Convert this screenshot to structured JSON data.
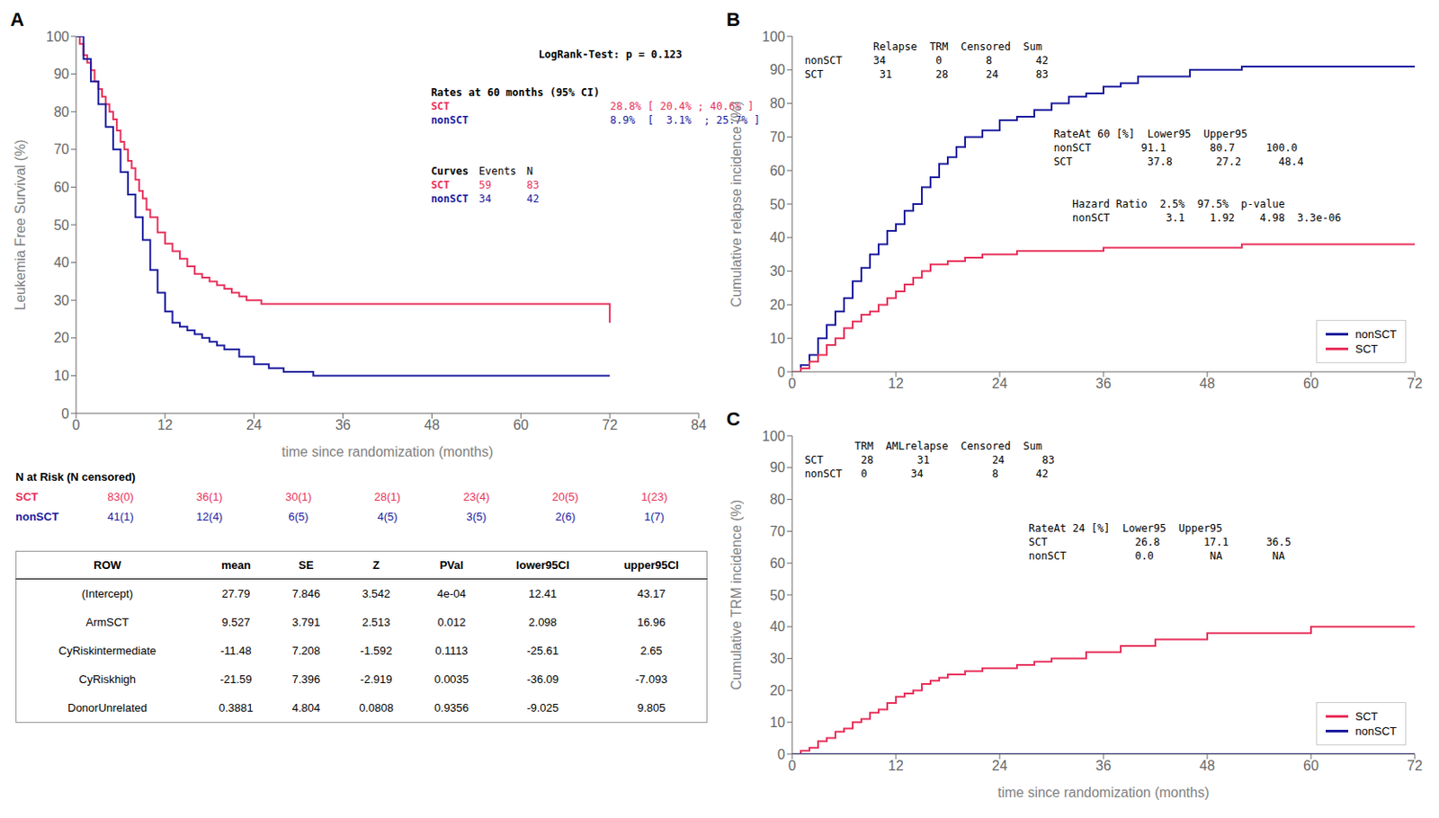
{
  "chart_data": [
    {
      "type": "line",
      "line_style": "step",
      "title": "A",
      "ylabel": "Leukemia Free Survival (%)",
      "xlabel": "time since randomization (months)",
      "xlim": [
        0,
        84
      ],
      "ylim": [
        0,
        100
      ],
      "xticks": [
        0,
        12,
        24,
        36,
        48,
        60,
        72,
        84
      ],
      "yticks": [
        0,
        10,
        20,
        30,
        40,
        50,
        60,
        70,
        80,
        90,
        100
      ],
      "series": [
        {
          "name": "SCT",
          "color": "#e8305a",
          "x": [
            0,
            0.5,
            1,
            1.5,
            2,
            2.5,
            3,
            3.5,
            4,
            4.5,
            5,
            5.5,
            6,
            6.5,
            7,
            7.5,
            8,
            8.5,
            9,
            9.5,
            10,
            11,
            12,
            13,
            14,
            15,
            16,
            17,
            18,
            19,
            20,
            21,
            22,
            23,
            24,
            25,
            26,
            27,
            28,
            30,
            32,
            34,
            36,
            38,
            40,
            42,
            44,
            46,
            48,
            52,
            56,
            60,
            64,
            72
          ],
          "values": [
            100,
            98,
            95,
            93,
            91,
            88,
            86,
            84,
            82,
            80,
            78,
            75,
            72,
            70,
            67,
            65,
            62,
            59,
            57,
            54,
            52,
            48,
            45,
            43,
            41,
            39,
            37,
            36,
            35,
            34,
            33,
            32,
            31,
            30,
            30,
            29,
            29,
            29,
            29,
            29,
            29,
            29,
            29,
            29,
            29,
            29,
            29,
            29,
            29,
            29,
            29,
            29,
            29,
            24
          ]
        },
        {
          "name": "nonSCT",
          "color": "#1a1a9e",
          "x": [
            0,
            1,
            2,
            3,
            4,
            5,
            6,
            7,
            8,
            9,
            10,
            11,
            12,
            13,
            14,
            15,
            16,
            17,
            18,
            19,
            20,
            22,
            24,
            26,
            28,
            32,
            36,
            40,
            60,
            72
          ],
          "values": [
            100,
            94,
            88,
            82,
            76,
            70,
            64,
            58,
            52,
            46,
            38,
            32,
            27,
            24,
            23,
            22,
            21,
            20,
            19,
            18,
            17,
            15,
            13,
            12,
            11,
            10,
            10,
            10,
            10,
            10
          ]
        }
      ],
      "annotations": [
        {
          "lines": [
            [
              "LogRank-Test: p = 0.123"
            ]
          ],
          "colors": [
            "#000000"
          ]
        },
        {
          "lines": [
            [
              "Rates at 60 months (95% CI)"
            ],
            [
              "SCT",
              "28.8% [ 20.4% ; 40.6% ]"
            ],
            [
              "nonSCT",
              "8.9%  [  3.1%  ; 25.7% ]"
            ]
          ],
          "colors": [
            "#000000",
            "#e8305a",
            "#1a1a9e"
          ]
        },
        {
          "lines": [
            [
              "Curves",
              "Events",
              "N"
            ],
            [
              "SCT",
              "59",
              "83"
            ],
            [
              "nonSCT",
              "34",
              "42"
            ]
          ],
          "colors": [
            "#000000",
            "#e8305a",
            "#1a1a9e"
          ]
        }
      ]
    },
    {
      "type": "table",
      "title": "N at Risk (N censored)",
      "series": [
        {
          "name": "SCT",
          "color": "#e8305a",
          "values": [
            "83(0)",
            "36(1)",
            "30(1)",
            "28(1)",
            "23(4)",
            "20(5)",
            "1(23)"
          ]
        },
        {
          "name": "nonSCT",
          "color": "#1a1a9e",
          "values": [
            "41(1)",
            "12(4)",
            "6(5)",
            "4(5)",
            "3(5)",
            "2(6)",
            "1(7)"
          ]
        }
      ]
    },
    {
      "type": "table",
      "columns": [
        "ROW",
        "mean",
        "SE",
        "Z",
        "PVal",
        "lower95CI",
        "upper95CI"
      ],
      "rows": [
        [
          "(Intercept)",
          27.79,
          7.846,
          3.542,
          "4e-04",
          12.41,
          43.17
        ],
        [
          "ArmSCT",
          9.527,
          3.791,
          2.513,
          "0.012",
          2.098,
          16.96
        ],
        [
          "CyRiskintermediate",
          -11.48,
          7.208,
          -1.592,
          "0.1113",
          -25.61,
          2.65
        ],
        [
          "CyRiskhigh",
          -21.59,
          7.396,
          -2.919,
          "0.0035",
          -36.09,
          -7.093
        ],
        [
          "DonorUnrelated",
          0.3881,
          4.804,
          0.0808,
          "0.9356",
          -9.025,
          9.805
        ]
      ]
    },
    {
      "type": "line",
      "line_style": "step",
      "title": "B",
      "ylabel": "Cumulative relapse incidence (%)",
      "xlim": [
        0,
        72
      ],
      "ylim": [
        0,
        100
      ],
      "xticks": [
        0,
        12,
        24,
        36,
        48,
        60,
        72
      ],
      "yticks": [
        0,
        10,
        20,
        30,
        40,
        50,
        60,
        70,
        80,
        90,
        100
      ],
      "legend": "lower right",
      "series": [
        {
          "name": "nonSCT",
          "color": "#1a1a9e",
          "x": [
            0,
            1,
            2,
            3,
            4,
            5,
            6,
            7,
            8,
            9,
            10,
            11,
            12,
            13,
            14,
            15,
            16,
            17,
            18,
            19,
            20,
            22,
            24,
            26,
            28,
            30,
            32,
            34,
            36,
            38,
            40,
            42,
            44,
            46,
            48,
            50,
            52,
            54,
            56,
            58,
            60,
            66,
            72
          ],
          "values": [
            0,
            2,
            5,
            10,
            14,
            18,
            22,
            27,
            31,
            35,
            38,
            42,
            44,
            48,
            50,
            55,
            58,
            62,
            64,
            67,
            70,
            72,
            75,
            76,
            78,
            80,
            82,
            83,
            85,
            86,
            88,
            88,
            88,
            90,
            90,
            90,
            91,
            91,
            91,
            91,
            91,
            91,
            91
          ]
        },
        {
          "name": "SCT",
          "color": "#e8305a",
          "x": [
            0,
            1,
            2,
            3,
            4,
            5,
            6,
            7,
            8,
            9,
            10,
            11,
            12,
            13,
            14,
            15,
            16,
            18,
            20,
            22,
            24,
            26,
            28,
            32,
            36,
            40,
            44,
            48,
            52,
            56,
            60,
            66,
            72
          ],
          "values": [
            0,
            1,
            3,
            5,
            8,
            10,
            13,
            15,
            17,
            18,
            20,
            22,
            24,
            26,
            28,
            30,
            32,
            33,
            34,
            35,
            35,
            36,
            36,
            36,
            37,
            37,
            37,
            37,
            38,
            38,
            38,
            38,
            38
          ]
        }
      ],
      "annotations": [
        {
          "lines": [
            [
              "           Relapse  TRM  Censored  Sum"
            ],
            [
              "nonSCT     34        0       8       42"
            ],
            [
              "SCT         31       28      24      83"
            ]
          ]
        },
        {
          "lines": [
            [
              "Hazard Ratio  2.5%  97.5%  p-value"
            ],
            [
              "nonSCT         3.1    1.92    4.98  3.3e-06"
            ]
          ]
        },
        {
          "lines": [
            [
              "RateAt 60 [%]  Lower95  Upper95"
            ],
            [
              "nonSCT        91.1       80.7     100.0"
            ],
            [
              "SCT            37.8       27.2      48.4"
            ]
          ]
        }
      ]
    },
    {
      "type": "line",
      "line_style": "step",
      "title": "C",
      "ylabel": "Cumulative TRM incidence (%)",
      "xlabel": "time since randomization (months)",
      "xlim": [
        0,
        72
      ],
      "ylim": [
        0,
        100
      ],
      "xticks": [
        0,
        12,
        24,
        36,
        48,
        60,
        72
      ],
      "yticks": [
        0,
        10,
        20,
        30,
        40,
        50,
        60,
        70,
        80,
        90,
        100
      ],
      "legend": "lower right",
      "series": [
        {
          "name": "SCT",
          "color": "#e8305a",
          "x": [
            0,
            1,
            2,
            3,
            4,
            5,
            6,
            7,
            8,
            9,
            10,
            11,
            12,
            13,
            14,
            15,
            16,
            17,
            18,
            20,
            22,
            24,
            26,
            28,
            30,
            34,
            38,
            42,
            48,
            60,
            72
          ],
          "values": [
            0,
            1,
            2,
            4,
            5,
            7,
            8,
            10,
            11,
            13,
            14,
            16,
            18,
            19,
            20,
            22,
            23,
            24,
            25,
            26,
            27,
            27,
            28,
            29,
            30,
            32,
            34,
            36,
            38,
            40,
            40
          ]
        },
        {
          "name": "nonSCT",
          "color": "#1a1a9e",
          "x": [
            0,
            72
          ],
          "values": [
            0,
            0
          ]
        }
      ],
      "annotations": [
        {
          "lines": [
            [
              "        TRM  AMLrelapse  Censored  Sum"
            ],
            [
              "SCT      28       31          24      83"
            ],
            [
              "nonSCT   0       34           8      42"
            ]
          ]
        },
        {
          "lines": [
            [
              "RateAt 24 [%]  Lower95  Upper95"
            ],
            [
              "SCT              26.8       17.1      36.5"
            ],
            [
              "nonSCT           0.0         NA        NA"
            ]
          ]
        }
      ]
    }
  ]
}
